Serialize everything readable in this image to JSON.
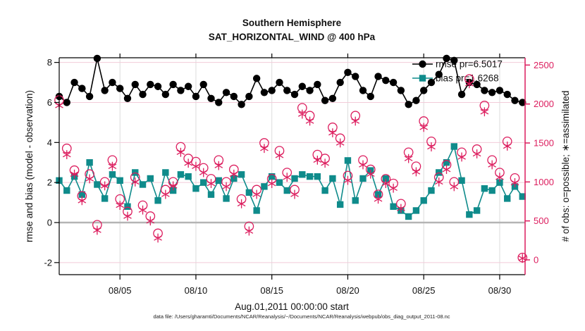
{
  "figure": {
    "footer": "data file: /Users/gharamti/Documents/NCAR/Reanalysis/~/Documents/NCAR/Reanalysis/webpub/obs_diag_output_2011-08.nc"
  },
  "colors": {
    "rmse_black": "#000000",
    "bias_teal": "#0f8b8b",
    "obs_pink": "#dc1d5e",
    "grid_pink": "#f2cbd9",
    "grid_vertical": "#dcdcdc",
    "zero_line": "#b4b4b4"
  },
  "chart_data": {
    "type": "line",
    "title": "Southern Hemisphere",
    "subtitle": "SAT_HORIZONTAL_WIND @ 400 hPa",
    "xlabel": "Aug.01,2011 00:00:00 start",
    "ylabel_left": "rmse and bias (model - observation)",
    "ylabel_right": "# of obs: o=possible; ∗=assimilated",
    "x_tick_labels": [
      "08/05",
      "08/10",
      "08/15",
      "08/20",
      "08/25",
      "08/30"
    ],
    "x_tick_days": [
      5,
      10,
      15,
      20,
      25,
      30
    ],
    "yticks_left": [
      8,
      6,
      4,
      2,
      0,
      -2
    ],
    "yticks_right": [
      2500,
      2000,
      1500,
      1000,
      500,
      0
    ],
    "ylim_left": [
      -2.6,
      8.3
    ],
    "ylim_right": [
      0,
      2500
    ],
    "grid": true,
    "legend_position": "top-right-inside",
    "legend": [
      {
        "label": "rmse pr=6.5017",
        "series": "rmse"
      },
      {
        "label": "bias pr=1.6268",
        "series": "bias"
      }
    ],
    "x_days_august_2011": [
      1,
      1.5,
      2,
      2.5,
      3,
      3.5,
      4,
      4.5,
      5,
      5.5,
      6,
      6.5,
      7,
      7.5,
      8,
      8.5,
      9,
      9.5,
      10,
      10.5,
      11,
      11.5,
      12,
      12.5,
      13,
      13.5,
      14,
      14.5,
      15,
      15.5,
      16,
      16.5,
      17,
      17.5,
      18,
      18.5,
      19,
      19.5,
      20,
      20.5,
      21,
      21.5,
      22,
      22.5,
      23,
      23.5,
      24,
      24.5,
      25,
      25.5,
      26,
      26.5,
      27,
      27.5,
      28,
      28.5,
      29,
      29.5,
      30,
      30.5,
      31,
      31.5
    ],
    "series": [
      {
        "name": "rmse",
        "axis": "left",
        "marker": "filled-circle",
        "line": true,
        "color": "#000000",
        "values": [
          6.3,
          6.0,
          7.0,
          6.7,
          6.3,
          8.2,
          6.6,
          7.0,
          6.7,
          6.2,
          6.9,
          6.4,
          6.9,
          6.8,
          6.4,
          6.9,
          6.6,
          6.8,
          6.3,
          6.9,
          6.2,
          6.0,
          6.5,
          6.3,
          5.9,
          6.3,
          7.2,
          6.5,
          6.6,
          7.0,
          6.6,
          6.4,
          6.8,
          6.6,
          6.9,
          6.1,
          6.2,
          7.0,
          7.5,
          7.3,
          6.6,
          6.3,
          7.3,
          7.1,
          7.0,
          6.6,
          5.9,
          6.1,
          6.6,
          7.0,
          7.4,
          8.2,
          8.1,
          6.4,
          7.0,
          6.9,
          6.6,
          6.5,
          6.6,
          6.4,
          6.1,
          6.0
        ]
      },
      {
        "name": "bias",
        "axis": "left",
        "marker": "filled-square",
        "line": true,
        "color": "#0f8b8b",
        "values": [
          2.1,
          1.6,
          2.3,
          1.4,
          3.0,
          1.9,
          1.2,
          2.4,
          2.1,
          0.8,
          2.5,
          1.9,
          2.2,
          1.1,
          2.5,
          1.6,
          2.4,
          2.3,
          1.7,
          2.0,
          1.4,
          2.1,
          1.2,
          2.2,
          2.4,
          1.5,
          0.6,
          1.8,
          2.3,
          2.0,
          1.6,
          2.2,
          2.4,
          2.3,
          2.3,
          1.6,
          2.2,
          0.9,
          3.1,
          1.1,
          2.2,
          2.6,
          1.4,
          2.2,
          0.8,
          0.6,
          0.3,
          0.6,
          1.1,
          1.6,
          2.5,
          3.0,
          3.8,
          2.1,
          0.4,
          0.6,
          1.7,
          1.6,
          2.0,
          1.2,
          1.8,
          1.3
        ]
      },
      {
        "name": "possible",
        "axis": "right",
        "marker": "open-circle",
        "line": false,
        "color": "#dc1d5e",
        "values": [
          2050,
          1430,
          1150,
          820,
          1100,
          450,
          1000,
          1280,
          780,
          620,
          1060,
          700,
          560,
          340,
          900,
          1000,
          1450,
          1300,
          1260,
          1180,
          1040,
          1280,
          1000,
          1160,
          780,
          430,
          900,
          1500,
          1040,
          1400,
          1120,
          900,
          1950,
          1850,
          1350,
          1300,
          1700,
          1560,
          1080,
          1850,
          1280,
          1160,
          840,
          1040,
          980,
          720,
          1380,
          1200,
          1780,
          1520,
          1060,
          1220,
          1000,
          1380,
          2320,
          1420,
          1980,
          1280,
          1120,
          1520,
          1050,
          30
        ]
      },
      {
        "name": "assimilated",
        "axis": "right",
        "marker": "asterisk",
        "line": false,
        "color": "#dc1d5e",
        "values": [
          1980,
          1350,
          1100,
          760,
          1040,
          380,
          950,
          1200,
          700,
          560,
          1000,
          640,
          500,
          280,
          840,
          950,
          1380,
          1240,
          1200,
          1120,
          980,
          1210,
          940,
          1100,
          720,
          370,
          840,
          1430,
          980,
          1340,
          1060,
          840,
          1870,
          1780,
          1280,
          1240,
          1630,
          1500,
          1020,
          1780,
          1220,
          1100,
          780,
          980,
          920,
          660,
          1300,
          1130,
          1700,
          1450,
          1000,
          1160,
          940,
          1320,
          2260,
          1360,
          1900,
          1220,
          1060,
          1460,
          990,
          20
        ]
      }
    ]
  }
}
